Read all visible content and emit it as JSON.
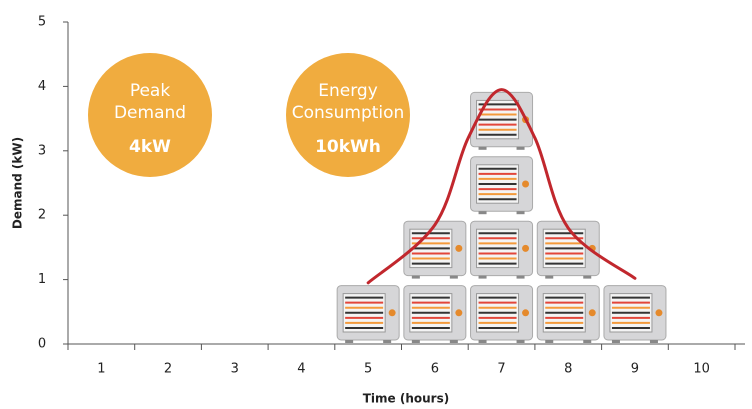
{
  "chart_data": {
    "type": "stacked-units",
    "x_label": "Time (hours)",
    "y_label": "Demand (kW)",
    "categories": [
      "1",
      "2",
      "3",
      "4",
      "5",
      "6",
      "7",
      "8",
      "9",
      "10"
    ],
    "values": [
      0,
      0,
      0,
      0,
      1,
      2,
      4,
      2,
      1,
      0
    ],
    "ylim": [
      0,
      5
    ],
    "yticks": [
      0,
      1,
      2,
      3,
      4,
      5
    ],
    "curve": {
      "color": "#c1272d",
      "x": [
        5,
        6,
        6.5,
        7,
        7.5,
        8,
        9
      ],
      "values": [
        0.95,
        1.85,
        3.2,
        3.95,
        3.2,
        1.8,
        1.02
      ]
    },
    "annotations": [
      {
        "lines": [
          "Peak",
          "Demand"
        ],
        "value": "4kW",
        "color": "#f0ac3f"
      },
      {
        "lines": [
          "Energy",
          "Consumption"
        ],
        "value": "10kWh",
        "color": "#f0ac3f"
      }
    ]
  }
}
